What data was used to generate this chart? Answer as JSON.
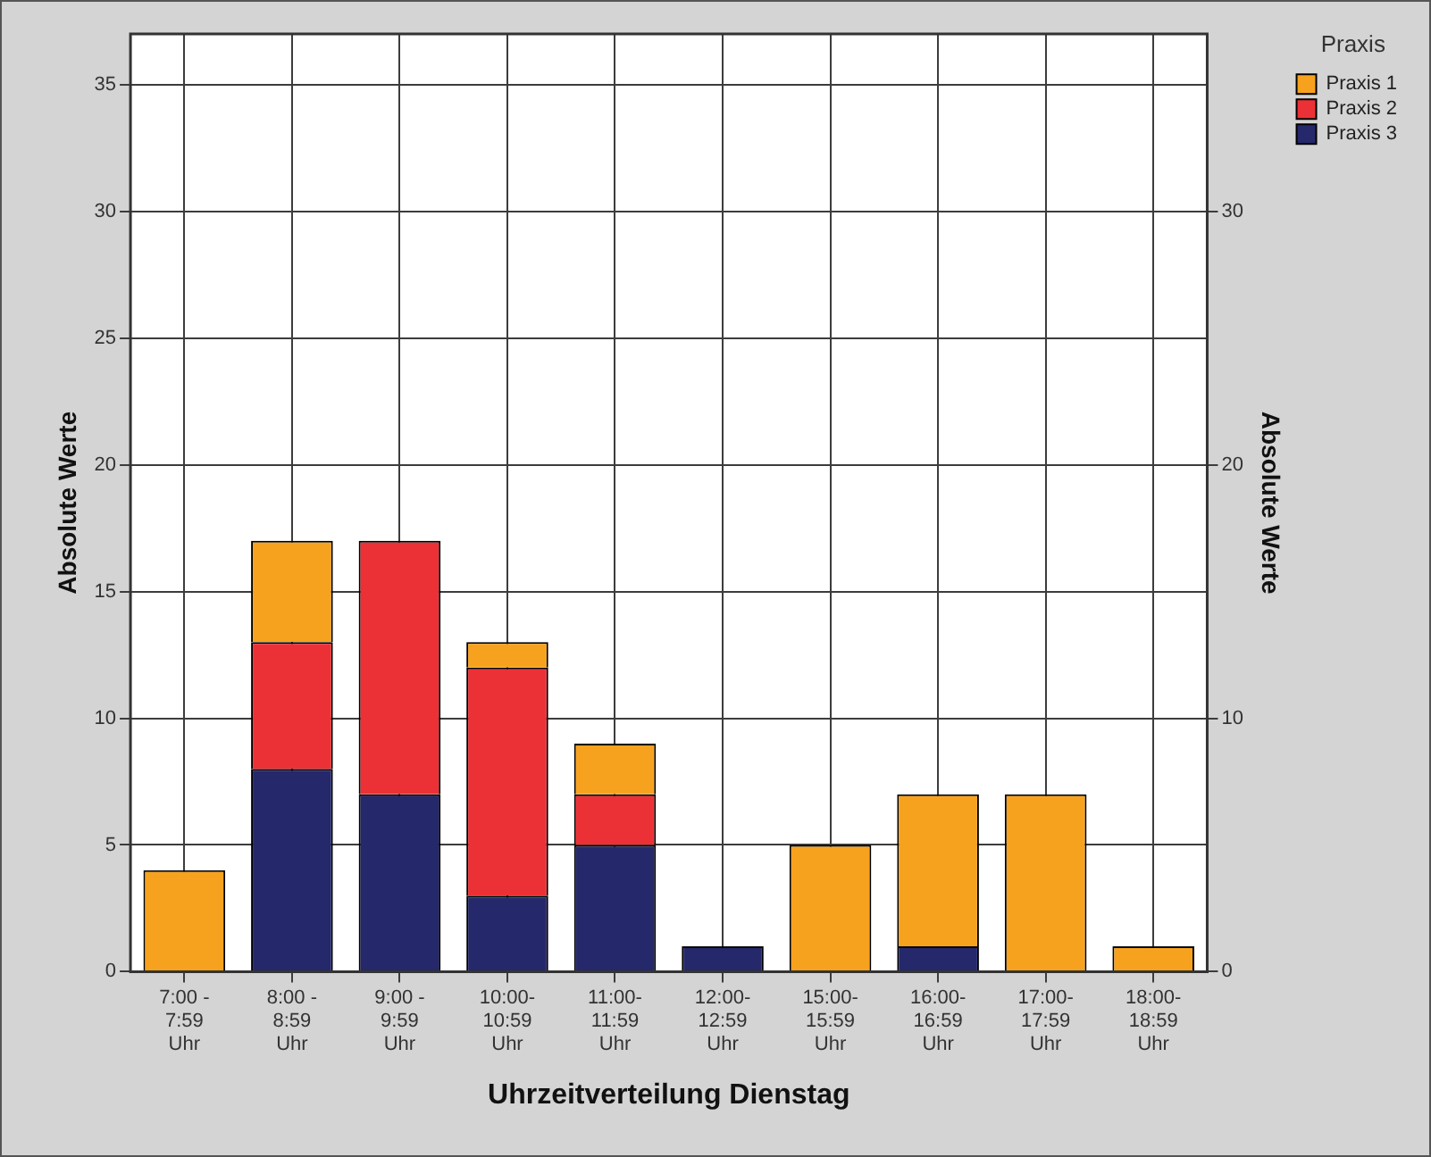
{
  "chart_data": {
    "type": "bar",
    "xlabel": "Uhrzeitverteilung Dienstag",
    "ylabel": "Absolute Werte",
    "y2label": "Absolute Werte",
    "legend_title": "Praxis",
    "categories": [
      "7:00 -\n7:59\nUhr",
      "8:00 -\n8:59\nUhr",
      "9:00 -\n9:59\nUhr",
      "10:00-\n10:59\nUhr",
      "11:00-\n11:59\nUhr",
      "12:00-\n12:59\nUhr",
      "15:00-\n15:59\nUhr",
      "16:00-\n16:59\nUhr",
      "17:00-\n17:59\nUhr",
      "18:00-\n18:59\nUhr"
    ],
    "series": [
      {
        "name": "Praxis 3",
        "color": "#25286b",
        "values": [
          0,
          8,
          7,
          3,
          5,
          1,
          0,
          1,
          0,
          0
        ]
      },
      {
        "name": "Praxis 2",
        "color": "#ec3136",
        "values": [
          0,
          5,
          10,
          9,
          2,
          0,
          0,
          0,
          0,
          0
        ]
      },
      {
        "name": "Praxis 1",
        "color": "#f7a21e",
        "values": [
          4,
          4,
          0,
          1,
          2,
          0,
          5,
          6,
          7,
          1
        ]
      }
    ],
    "stacked": true,
    "ylim": [
      0,
      37
    ],
    "yticks": [
      0,
      5,
      10,
      15,
      20,
      25,
      30,
      35
    ],
    "y2lim": [
      0,
      37
    ],
    "y2ticks": [
      0,
      10,
      20,
      30
    ],
    "grid": true,
    "legend": "top right"
  }
}
